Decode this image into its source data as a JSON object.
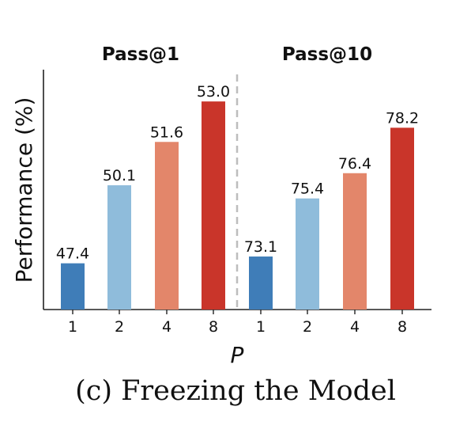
{
  "chart_data": {
    "type": "bar",
    "ylabel": "Performance (%)",
    "xlabel": "P",
    "ylim": [
      45.8,
      54.1
    ],
    "caption": "(c) Freezing the Model",
    "colors": [
      "#3f7db8",
      "#8fbcdb",
      "#e3866a",
      "#c9352a"
    ],
    "groups": [
      {
        "title": "Pass@1",
        "categories": [
          "1",
          "2",
          "4",
          "8"
        ],
        "values": [
          47.4,
          50.1,
          51.6,
          53.0
        ],
        "labels": [
          "47.4",
          "50.1",
          "51.6",
          "53.0"
        ]
      },
      {
        "title": "Pass@10",
        "categories": [
          "1",
          "2",
          "4",
          "8"
        ],
        "values": [
          73.1,
          75.4,
          76.4,
          78.2
        ],
        "labels": [
          "73.1",
          "75.4",
          "76.4",
          "78.2"
        ],
        "ylim": [
          71.0,
          80.5
        ]
      }
    ]
  }
}
